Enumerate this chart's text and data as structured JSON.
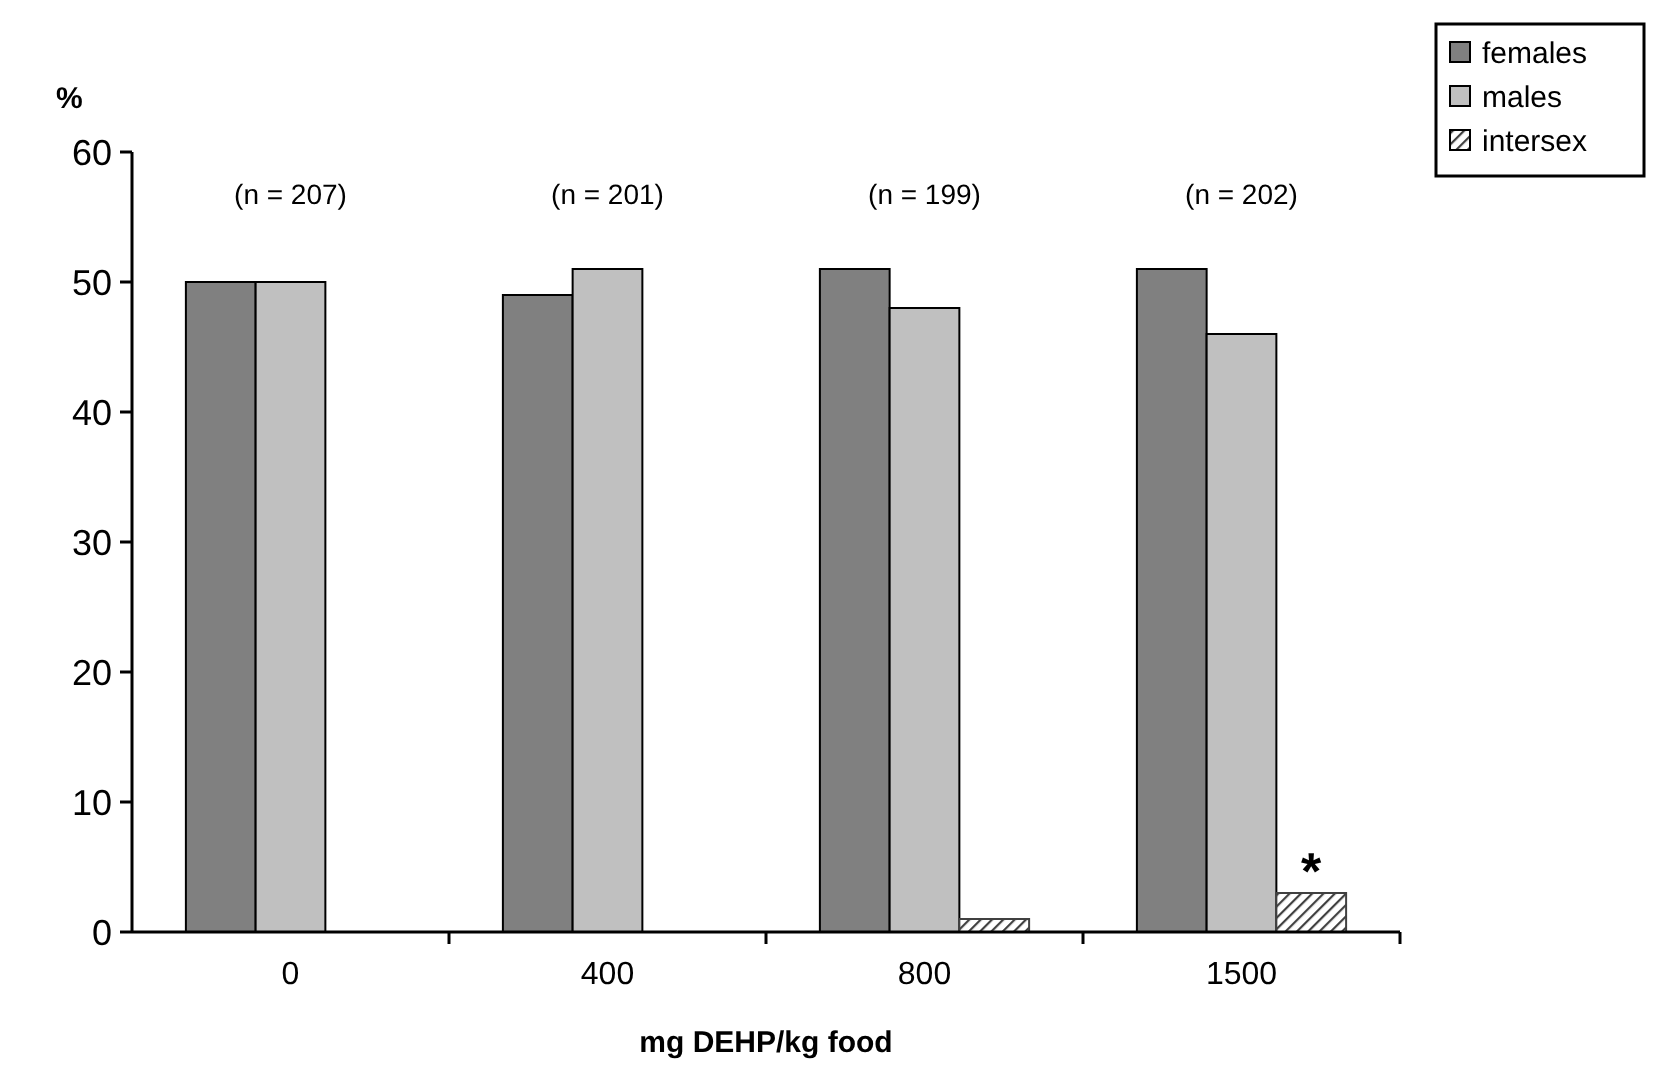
{
  "chart_data": {
    "type": "bar",
    "ylabel": "%",
    "xlabel": "mg DEHP/kg food",
    "categories": [
      "0",
      "400",
      "800",
      "1500"
    ],
    "series": [
      {
        "name": "females",
        "color": "#808080",
        "values": [
          50,
          49,
          51,
          51
        ]
      },
      {
        "name": "males",
        "color": "#c0c0c0",
        "values": [
          50,
          51,
          48,
          46
        ]
      },
      {
        "name": "intersex",
        "color": "#404040",
        "values": [
          0,
          0,
          1,
          3
        ]
      }
    ],
    "ylim": [
      0,
      60
    ],
    "yticks": [
      0,
      10,
      20,
      30,
      40,
      50,
      60
    ],
    "grid": false,
    "legend": "top right",
    "annotations": [
      "(n = 207)",
      "(n = 201)",
      "(n = 199)",
      "(n = 202)",
      "*"
    ]
  }
}
